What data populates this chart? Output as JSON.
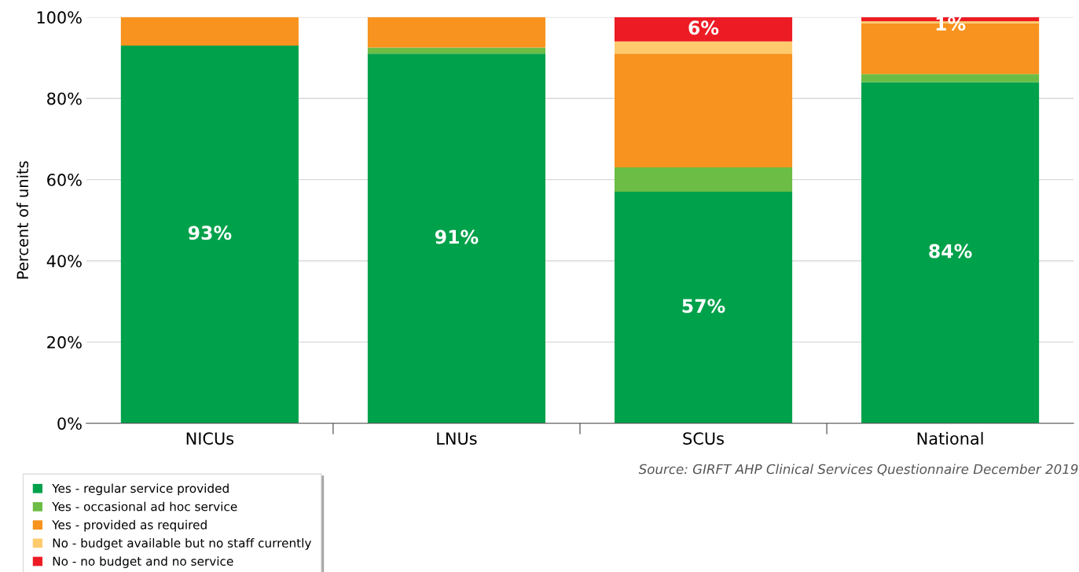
{
  "chart_data": {
    "type": "bar",
    "stacked": true,
    "ylabel": "Percent of units",
    "categories": [
      "NICUs",
      "LNUs",
      "SCUs",
      "National"
    ],
    "series": [
      {
        "name": "Yes - regular service provided",
        "color": "#00a14b",
        "values": [
          93,
          91,
          57,
          84
        ],
        "value_labels": [
          "93%",
          "91%",
          "57%",
          "84%"
        ]
      },
      {
        "name": "Yes - occasional ad hoc service",
        "color": "#6cbd45",
        "values": [
          0,
          1.5,
          6,
          2
        ],
        "value_labels": [
          null,
          null,
          null,
          null
        ]
      },
      {
        "name": "Yes - provided as required",
        "color": "#f7931e",
        "values": [
          7,
          7.5,
          28,
          12.5
        ],
        "value_labels": [
          null,
          null,
          null,
          null
        ]
      },
      {
        "name": "No - budget available but no staff currently",
        "color": "#fdcb6e",
        "values": [
          0,
          0,
          3,
          0.5
        ],
        "value_labels": [
          null,
          null,
          null,
          null
        ]
      },
      {
        "name": "No - no budget and no service",
        "color": "#ed1c24",
        "values": [
          0,
          0,
          6,
          1
        ],
        "value_labels": [
          null,
          null,
          "6%",
          "1%"
        ]
      }
    ],
    "ylim": [
      0,
      100
    ],
    "yticks": [
      {
        "value": 0,
        "label": "0%"
      },
      {
        "value": 20,
        "label": "20%"
      },
      {
        "value": 40,
        "label": "40%"
      },
      {
        "value": 60,
        "label": "60%"
      },
      {
        "value": 80,
        "label": "80%"
      },
      {
        "value": 100,
        "label": "100%"
      }
    ],
    "grid": "y",
    "legend": "bottom left",
    "annotations": [
      "Source: GIRFT AHP Clinical Services Questionnaire December 2019"
    ]
  }
}
